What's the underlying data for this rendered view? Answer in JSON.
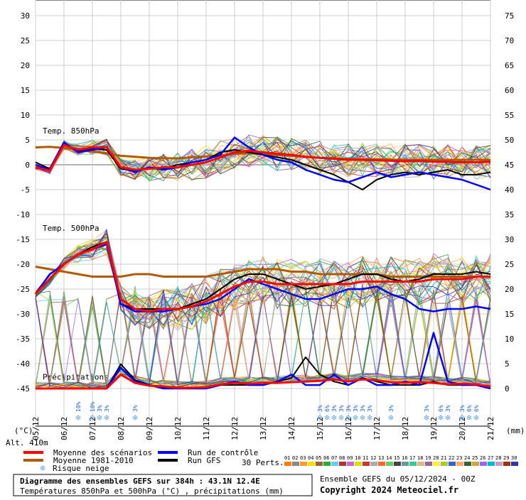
{
  "chart_data": {
    "type": "line",
    "title": "Diagramme des ensembles GEFS sur 384h : 43.1N 12.4E",
    "subtitle": "Températures 850hPa et 500hPa (°C) , précipitations (mm)",
    "run_info": "Ensemble GEFS du 05/12/2024 - 00Z",
    "copyright": "Copyright 2024 Meteociel.fr",
    "altitude_label": "Alt. 410m",
    "left_axis_unit": "(°C)",
    "right_axis_unit": "(mm)",
    "y_left": {
      "range": [
        -45,
        30
      ],
      "ticks": [
        30,
        25,
        20,
        15,
        10,
        5,
        0,
        -5,
        -10,
        -15,
        -20,
        -25,
        -30,
        -35,
        -40,
        -45
      ]
    },
    "y_right": {
      "ticks": [
        75,
        70,
        65,
        60,
        55,
        50,
        45,
        40,
        35,
        30,
        25,
        20,
        15,
        10,
        5,
        0
      ]
    },
    "x_labels": [
      "05/12",
      "06/12",
      "07/12",
      "08/12",
      "09/12",
      "10/12",
      "11/12",
      "12/12",
      "13/12",
      "14/12",
      "15/12",
      "16/12",
      "17/12",
      "18/12",
      "19/12",
      "20/12",
      "21/12"
    ],
    "x": [
      0,
      0.5,
      1,
      1.5,
      2,
      2.5,
      3,
      3.5,
      4,
      4.5,
      5,
      5.5,
      6,
      6.5,
      7,
      7.5,
      8,
      8.5,
      9,
      9.5,
      10,
      10.5,
      11,
      11.5,
      12,
      12.5,
      13,
      13.5,
      14,
      14.5,
      15,
      15.5,
      16
    ],
    "panel_labels": {
      "t850": "Temp. 850hPa",
      "t500": "Temp. 500hPa",
      "precip": "Précipitations"
    },
    "series": [
      {
        "name": "Moyenne des scénarios",
        "color": "#ff0000",
        "panel": "t850",
        "values": [
          -0.5,
          -1.2,
          4.0,
          3.0,
          3.5,
          3.5,
          -0.5,
          -1.0,
          -0.8,
          -0.5,
          -0.5,
          0,
          0.5,
          1.5,
          2.5,
          2.8,
          2.5,
          2.2,
          2.0,
          1.6,
          1.4,
          1.2,
          1.0,
          1.0,
          0.9,
          0.8,
          0.7,
          0.8,
          0.6,
          0.6,
          0.5,
          0.5,
          0.6
        ]
      },
      {
        "name": "Moyenne 1981-2010",
        "color": "#b05a00",
        "panel": "t850",
        "values": [
          3.5,
          3.6,
          3.4,
          3.0,
          2.7,
          2.3,
          1.8,
          1.6,
          1.4,
          1.3,
          1.3,
          1.5,
          1.7,
          1.9,
          2.2,
          2.3,
          2.2,
          2.0,
          1.8,
          1.6,
          1.4,
          1.3,
          1.2,
          1.1,
          1.1,
          1.0,
          1.0,
          1.0,
          1.0,
          1.0,
          1.0,
          1.0,
          1.0
        ]
      },
      {
        "name": "Run de contrôle",
        "color": "#0000ff",
        "panel": "t850",
        "values": [
          0,
          -1.0,
          4.5,
          2.5,
          3.0,
          3.5,
          -0.5,
          -1.5,
          -0.5,
          -1.0,
          -0.5,
          0.5,
          1.0,
          2.0,
          5.5,
          3.5,
          2.0,
          1.0,
          0.5,
          -1.0,
          -2.0,
          -3.0,
          -3.5,
          -2.5,
          -1.5,
          -2.5,
          -2.0,
          -1.5,
          -2.0,
          -2.5,
          -3.0,
          -4.0,
          -5.0
        ]
      },
      {
        "name": "Run GFS",
        "color": "#000000",
        "panel": "t850",
        "values": [
          0.5,
          -0.8,
          4.2,
          2.8,
          3.2,
          3.0,
          -0.8,
          -1.2,
          -0.5,
          -0.8,
          0,
          0.5,
          1.0,
          2.5,
          3.0,
          2.5,
          2.0,
          1.5,
          1.0,
          0,
          -1.0,
          -2.0,
          -3.5,
          -5.0,
          -3.0,
          -2.0,
          -1.5,
          -2.0,
          -1.5,
          -1.0,
          -2.0,
          -2.0,
          -1.5
        ]
      },
      {
        "name": "Moyenne des scénarios",
        "color": "#ff0000",
        "panel": "t500",
        "values": [
          -26,
          -23,
          -20,
          -18,
          -17,
          -15.5,
          -27,
          -29,
          -29.5,
          -29,
          -29,
          -28.5,
          -27.5,
          -26,
          -24.5,
          -23.5,
          -23.5,
          -24,
          -24,
          -24,
          -24,
          -24,
          -24,
          -23.5,
          -23.5,
          -23.5,
          -23.5,
          -23.5,
          -23,
          -23,
          -23,
          -22.5,
          -22.5
        ]
      },
      {
        "name": "Moyenne 1981-2010",
        "color": "#b05a00",
        "panel": "t500",
        "values": [
          -20.5,
          -21,
          -21.5,
          -22,
          -22.5,
          -22.5,
          -22.5,
          -22,
          -22,
          -22.5,
          -22.5,
          -22.5,
          -22.5,
          -22,
          -21.5,
          -21,
          -21,
          -21,
          -21.5,
          -21.5,
          -22,
          -22,
          -22,
          -22,
          -22,
          -22.5,
          -22.5,
          -22.5,
          -22.5,
          -22.5,
          -22.5,
          -22.5,
          -22.5
        ]
      },
      {
        "name": "Run de contrôle",
        "color": "#0000ff",
        "panel": "t500",
        "values": [
          -26,
          -22,
          -20,
          -18,
          -17,
          -16,
          -28,
          -29.5,
          -29.5,
          -29.5,
          -29,
          -28.5,
          -28,
          -27,
          -25,
          -23,
          -24,
          -25,
          -26,
          -27,
          -27,
          -26,
          -25,
          -25,
          -24.5,
          -26,
          -27,
          -29,
          -29.5,
          -29,
          -29,
          -28.5,
          -29
        ]
      },
      {
        "name": "Run GFS",
        "color": "#000000",
        "panel": "t500",
        "values": [
          -26,
          -22,
          -20,
          -18,
          -16.5,
          -15.5,
          -28,
          -29,
          -29,
          -29,
          -29,
          -28,
          -27,
          -25,
          -23,
          -22,
          -22,
          -23,
          -24,
          -25,
          -24.5,
          -24,
          -23,
          -22,
          -22,
          -23,
          -23.5,
          -23,
          -22,
          -22,
          -22,
          -21.5,
          -22
        ]
      },
      {
        "name": "Moyenne des scénarios",
        "color": "#ff0000",
        "panel": "precip",
        "values": [
          0,
          0,
          0,
          0,
          0,
          0,
          2.0,
          0.8,
          0.4,
          0.3,
          0.1,
          0.1,
          0.2,
          0.6,
          0.8,
          0.7,
          0.8,
          0.8,
          0.9,
          1.0,
          1.1,
          1.3,
          1.0,
          1.3,
          1.2,
          0.9,
          0.8,
          0.9,
          0.8,
          0.6,
          0.7,
          0.6,
          0.3
        ]
      },
      {
        "name": "Run de contrôle",
        "color": "#0000ff",
        "panel": "precip",
        "values": [
          0,
          0,
          0,
          0,
          0,
          0,
          3.0,
          1.0,
          0.5,
          0,
          0,
          0,
          0,
          0.5,
          1.0,
          0.5,
          0.5,
          1.0,
          2.0,
          0.5,
          0.5,
          2.0,
          0.5,
          1.5,
          0.5,
          0.5,
          1.0,
          0.5,
          8.0,
          1.0,
          0.5,
          0.5,
          0
        ]
      },
      {
        "name": "Run GFS",
        "color": "#000000",
        "panel": "precip",
        "values": [
          0,
          0,
          0,
          0,
          0,
          0,
          3.5,
          1.2,
          0.5,
          0.2,
          0,
          0,
          0,
          0.5,
          0.5,
          0.5,
          0.5,
          1.0,
          1.5,
          4.5,
          2.0,
          1.0,
          0.5,
          1.5,
          1.0,
          0.5,
          0.5,
          0.5,
          1.0,
          0.5,
          0.5,
          0.5,
          0
        ]
      }
    ],
    "snow_risk": [
      {
        "x": 1.5,
        "label": "10%"
      },
      {
        "x": 2.0,
        "label": "10%"
      },
      {
        "x": 2.25,
        "label": "3%"
      },
      {
        "x": 2.5,
        "label": "3%"
      },
      {
        "x": 3.5,
        "label": "3%"
      },
      {
        "x": 10.0,
        "label": "3%"
      },
      {
        "x": 10.25,
        "label": "6%"
      },
      {
        "x": 10.5,
        "label": "3%"
      },
      {
        "x": 10.75,
        "label": "3%"
      },
      {
        "x": 11.0,
        "label": "3%"
      },
      {
        "x": 11.25,
        "label": "3%"
      },
      {
        "x": 11.5,
        "label": "3%"
      },
      {
        "x": 11.75,
        "label": "3%"
      },
      {
        "x": 12.5,
        "label": "3%"
      },
      {
        "x": 13.75,
        "label": "3%"
      },
      {
        "x": 14.25,
        "label": "6%"
      },
      {
        "x": 14.5,
        "label": "3%"
      },
      {
        "x": 15.0,
        "label": "3%"
      },
      {
        "x": 15.25,
        "label": "6%"
      },
      {
        "x": 15.5,
        "label": "6%"
      }
    ],
    "legend": [
      {
        "label": "Moyenne des scénarios",
        "color": "#ff0000"
      },
      {
        "label": "Moyenne 1981-2010",
        "color": "#b05a00"
      },
      {
        "label": "Risque neige",
        "color": "#6aa6e8",
        "icon": "snowflake-icon"
      },
      {
        "label": "Run de contrôle",
        "color": "#0000ff"
      },
      {
        "label": "Run GFS",
        "color": "#000000"
      }
    ],
    "perts_label": "30 Perts.",
    "perturbations": [
      {
        "label": "01",
        "color": "#ff7f00"
      },
      {
        "label": "02",
        "color": "#888888"
      },
      {
        "label": "03",
        "color": "#ff9933"
      },
      {
        "label": "04",
        "color": "#ffdd00"
      },
      {
        "label": "05",
        "color": "#996633"
      },
      {
        "label": "06",
        "color": "#33aa33"
      },
      {
        "label": "07",
        "color": "#66ccff"
      },
      {
        "label": "08",
        "color": "#aa3333"
      },
      {
        "label": "09",
        "color": "#cc66cc"
      },
      {
        "label": "10",
        "color": "#dddd00"
      },
      {
        "label": "11",
        "color": "#cc3333"
      },
      {
        "label": "12",
        "color": "#aaaaaa"
      },
      {
        "label": "13",
        "color": "#ff6633"
      },
      {
        "label": "14",
        "color": "#66cc66"
      },
      {
        "label": "15",
        "color": "#444444"
      },
      {
        "label": "16",
        "color": "#669999"
      },
      {
        "label": "17",
        "color": "#33cc99"
      },
      {
        "label": "18",
        "color": "#ddbb88"
      },
      {
        "label": "19",
        "color": "#996699"
      },
      {
        "label": "20",
        "color": "#ffee33"
      },
      {
        "label": "21",
        "color": "#aacc33"
      },
      {
        "label": "22",
        "color": "#3366cc"
      },
      {
        "label": "23",
        "color": "#ffaa66"
      },
      {
        "label": "24",
        "color": "#336633"
      },
      {
        "label": "25",
        "color": "#ccaa33"
      },
      {
        "label": "26",
        "color": "#9966ff"
      },
      {
        "label": "27",
        "color": "#00bbcc"
      },
      {
        "label": "28",
        "color": "#cc99cc"
      },
      {
        "label": "29",
        "color": "#993300"
      },
      {
        "label": "30",
        "color": "#3333aa"
      }
    ]
  }
}
